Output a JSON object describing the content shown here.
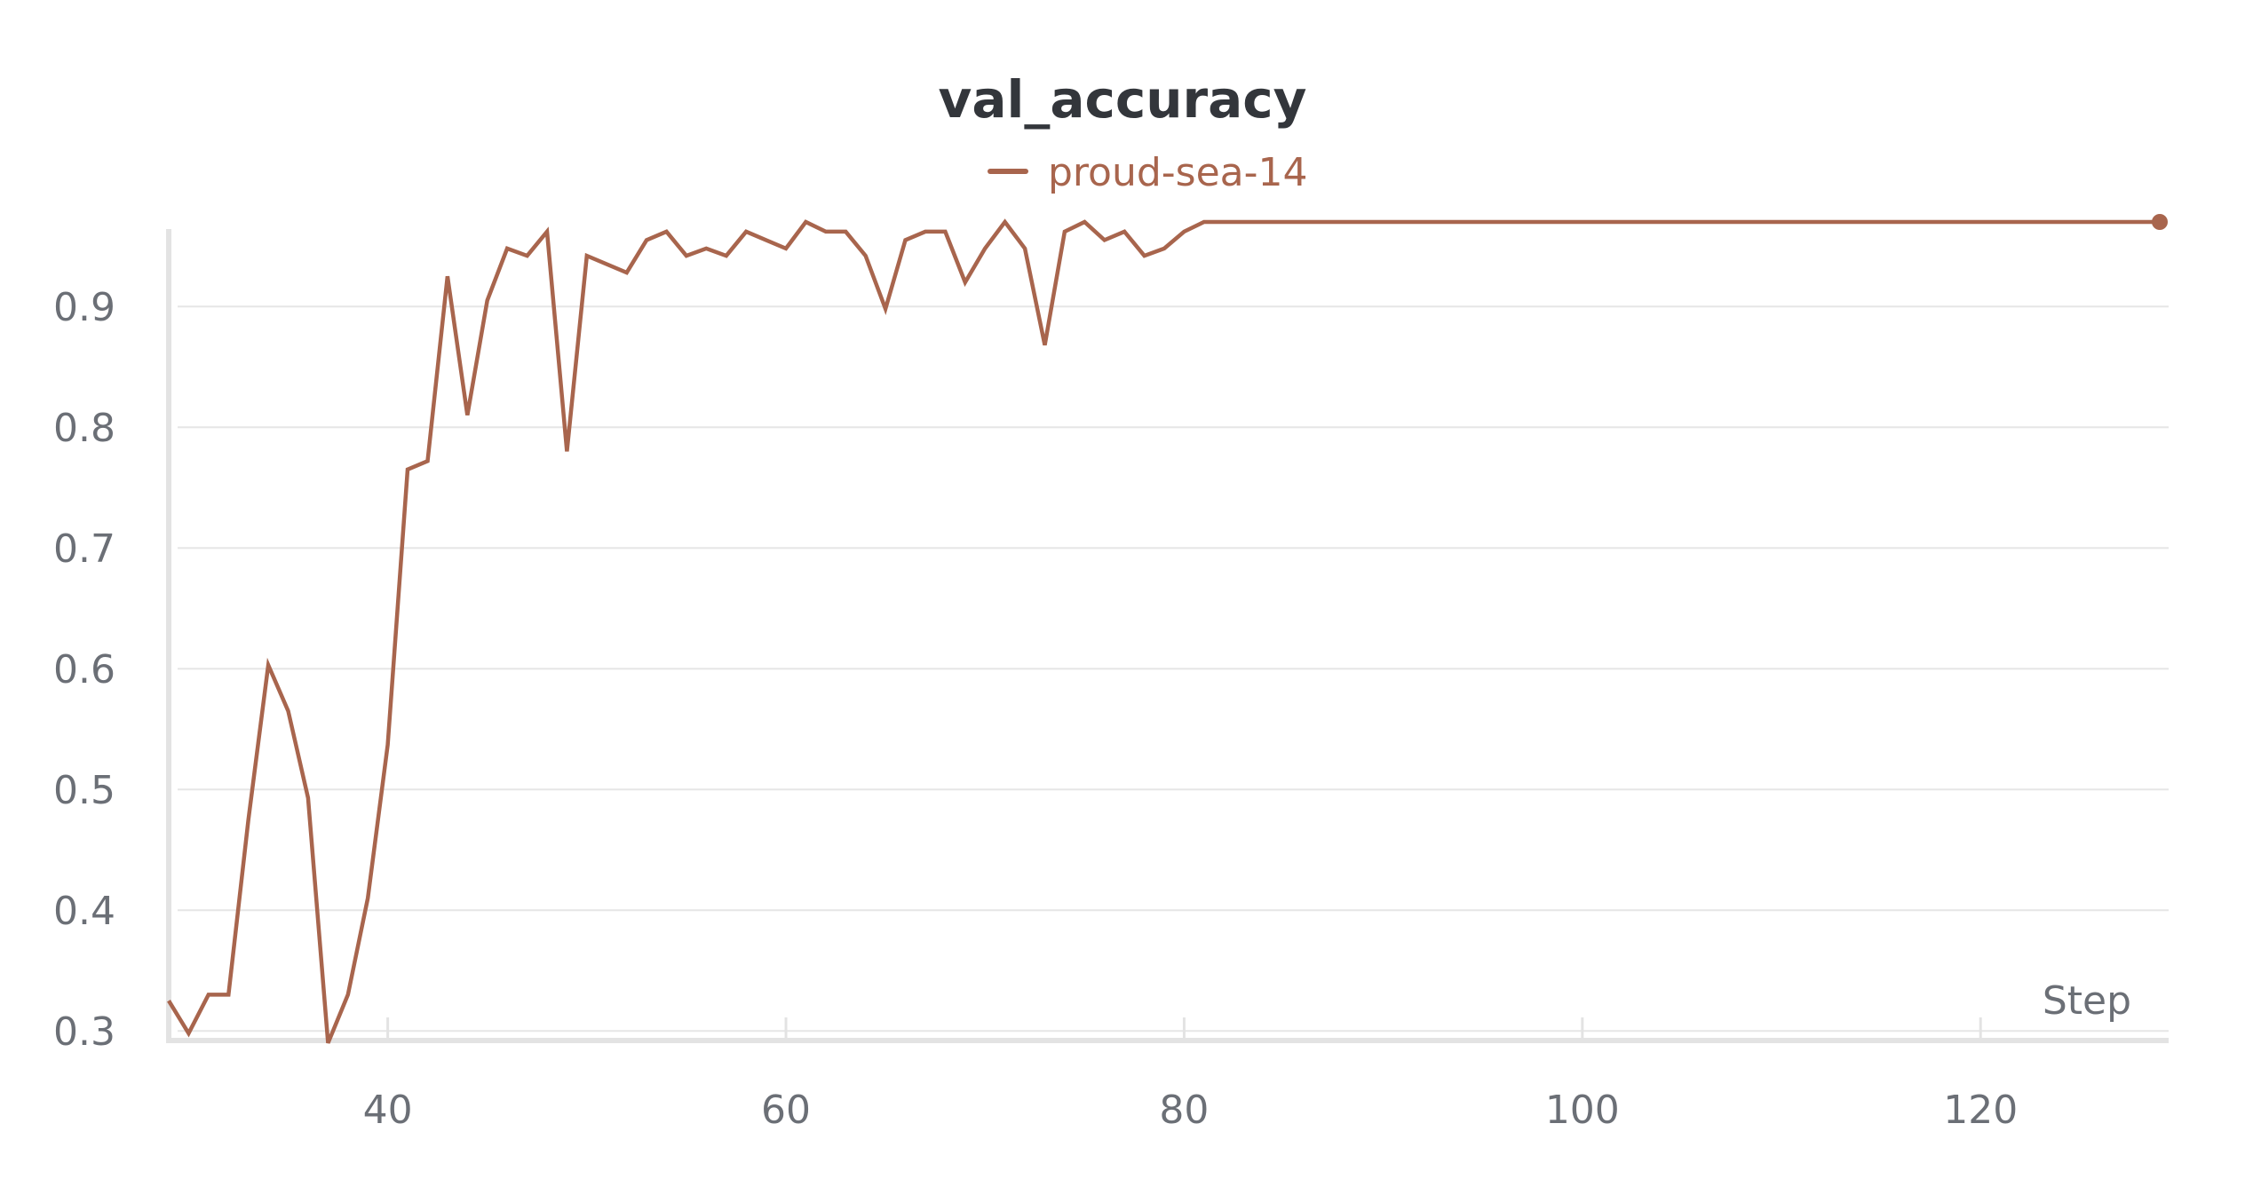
{
  "chart_data": {
    "type": "line",
    "title": "val_accuracy",
    "xlabel": "Step",
    "ylabel": "",
    "legend_position": "top-center",
    "grid": true,
    "xlim": [
      29,
      129
    ],
    "ylim": [
      0.295,
      0.97
    ],
    "xticks": [
      40,
      60,
      80,
      100,
      120
    ],
    "yticks": [
      0.3,
      0.4,
      0.5,
      0.6,
      0.7,
      0.8,
      0.9
    ],
    "series": [
      {
        "name": "proud-sea-14",
        "color": "#a8654d",
        "x": [
          29,
          30,
          31,
          32,
          33,
          34,
          35,
          36,
          37,
          38,
          39,
          40,
          41,
          42,
          43,
          44,
          45,
          46,
          47,
          48,
          49,
          50,
          51,
          52,
          53,
          54,
          55,
          56,
          57,
          58,
          59,
          60,
          61,
          62,
          63,
          64,
          65,
          66,
          67,
          68,
          69,
          70,
          71,
          72,
          73,
          74,
          75,
          76,
          77,
          78,
          79,
          80,
          81,
          82,
          83,
          84,
          85,
          86,
          87,
          88,
          89,
          90,
          91,
          92,
          93,
          94,
          95,
          96,
          97,
          98,
          99,
          100,
          101,
          102,
          103,
          104,
          105,
          106,
          107,
          108,
          109,
          110,
          111,
          112,
          113,
          114,
          115,
          116,
          117,
          118,
          119,
          120,
          121,
          122,
          123,
          124,
          125,
          126,
          127,
          128,
          129
        ],
        "y": [
          0.325,
          0.298,
          0.33,
          0.33,
          0.475,
          0.603,
          0.565,
          0.493,
          0.29,
          0.33,
          0.41,
          0.537,
          0.765,
          0.772,
          0.925,
          0.81,
          0.905,
          0.948,
          0.942,
          0.962,
          0.78,
          0.942,
          0.935,
          0.928,
          0.955,
          0.962,
          0.942,
          0.948,
          0.942,
          0.962,
          0.955,
          0.948,
          0.97,
          0.962,
          0.962,
          0.942,
          0.898,
          0.955,
          0.962,
          0.962,
          0.92,
          0.948,
          0.97,
          0.948,
          0.868,
          0.962,
          0.97,
          0.955,
          0.962,
          0.942,
          0.948,
          0.962,
          0.97,
          0.97,
          0.97,
          0.97,
          0.97,
          0.97,
          0.97,
          0.97,
          0.97,
          0.97,
          0.97,
          0.97,
          0.97,
          0.97,
          0.97,
          0.97,
          0.97,
          0.97,
          0.97,
          0.97,
          0.97,
          0.97,
          0.97,
          0.97,
          0.97,
          0.97,
          0.97,
          0.97,
          0.97,
          0.97,
          0.97,
          0.97,
          0.97,
          0.97,
          0.97,
          0.97,
          0.97,
          0.97,
          0.97,
          0.97,
          0.97,
          0.97,
          0.97,
          0.97,
          0.97,
          0.97,
          0.97,
          0.97,
          0.97
        ]
      }
    ]
  }
}
